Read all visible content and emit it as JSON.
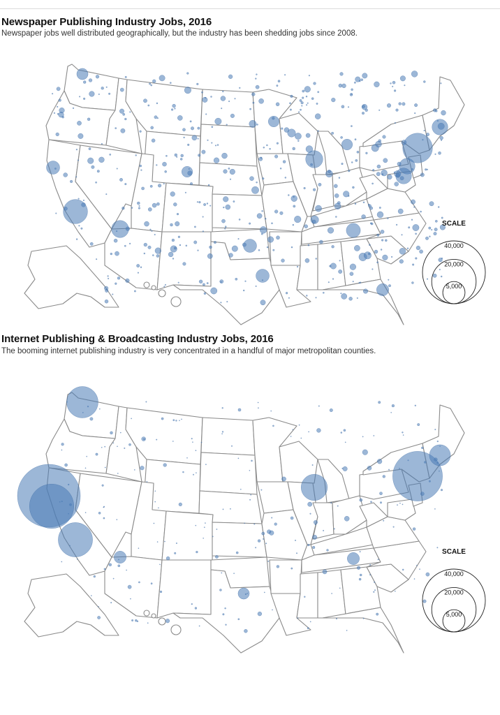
{
  "maps": [
    {
      "title": "Newspaper Publishing Industry Jobs, 2016",
      "subtitle": "Newspaper jobs well distributed geographically, but the industry has been shedding jobs since 2008.",
      "scale": {
        "title": "SCALE",
        "labels": [
          "40,000",
          "20,000",
          "5,000"
        ],
        "values": [
          40000,
          20000,
          5000
        ]
      },
      "bubble_color": "#4a7bb7",
      "major_bubbles": [
        {
          "place": "New York",
          "jobs": 9000
        },
        {
          "place": "Philadelphia",
          "jobs": 2500
        },
        {
          "place": "Boston",
          "jobs": 2500
        },
        {
          "place": "Washington",
          "jobs": 2500
        },
        {
          "place": "Chicago",
          "jobs": 3000
        },
        {
          "place": "Los Angeles",
          "jobs": 6000
        },
        {
          "place": "Phoenix",
          "jobs": 3000
        },
        {
          "place": "San Francisco",
          "jobs": 1800
        },
        {
          "place": "Dallas",
          "jobs": 1800
        },
        {
          "place": "Houston",
          "jobs": 1800
        },
        {
          "place": "Atlanta",
          "jobs": 2000
        },
        {
          "place": "Miami",
          "jobs": 1500
        },
        {
          "place": "Seattle",
          "jobs": 1300
        },
        {
          "place": "Denver",
          "jobs": 1200
        },
        {
          "place": "Detroit",
          "jobs": 1200
        },
        {
          "place": "Minneapolis",
          "jobs": 1200
        }
      ]
    },
    {
      "title": "Internet Publishing & Broadcasting Industry Jobs, 2016",
      "subtitle": "The booming internet publishing industry is very concentrated in a handful of major metropolitan counties.",
      "scale": {
        "title": "SCALE",
        "labels": [
          "40,000",
          "20,000",
          "5,000"
        ],
        "values": [
          40000,
          20000,
          5000
        ]
      },
      "bubble_color": "#4a7bb7",
      "major_bubbles": [
        {
          "place": "San Francisco Bay Area",
          "jobs": 40000
        },
        {
          "place": "San Jose",
          "jobs": 20000
        },
        {
          "place": "New York",
          "jobs": 25000
        },
        {
          "place": "Los Angeles",
          "jobs": 12000
        },
        {
          "place": "Seattle",
          "jobs": 10000
        },
        {
          "place": "Chicago",
          "jobs": 7000
        },
        {
          "place": "Boston",
          "jobs": 4500
        },
        {
          "place": "Phoenix",
          "jobs": 1500
        },
        {
          "place": "Atlanta",
          "jobs": 1500
        },
        {
          "place": "Austin",
          "jobs": 1300
        }
      ]
    }
  ]
}
